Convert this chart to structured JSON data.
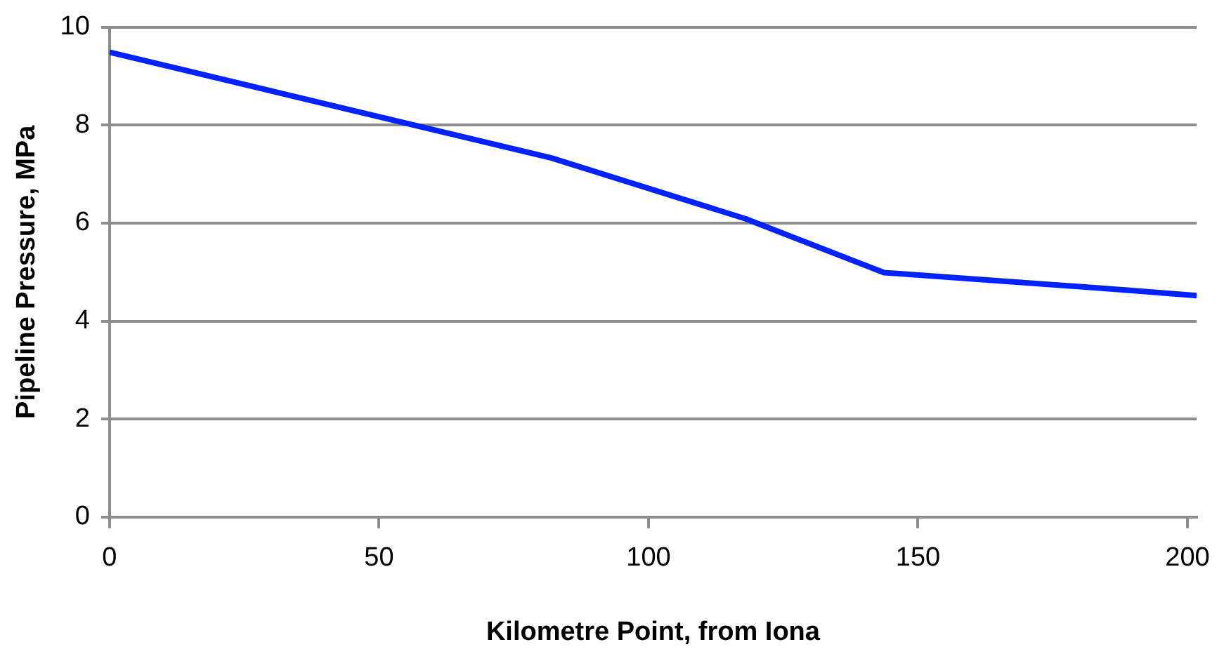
{
  "chart_data": {
    "type": "line",
    "xlabel": "Kilometre Point, from Iona",
    "ylabel": "Pipeline Pressure, MPa",
    "x": [
      0,
      82,
      118,
      143.7,
      188,
      201.7
    ],
    "series": [
      {
        "color": "#0022ff",
        "values": [
          9.49,
          7.33,
          6.09,
          4.99,
          4.64,
          4.52
        ]
      }
    ],
    "xlim": [
      0,
      201.7
    ],
    "xticks": [
      0,
      50,
      100,
      150,
      200
    ],
    "ylim": [
      0,
      10
    ],
    "yticks": [
      0,
      2,
      4,
      6,
      8,
      10
    ],
    "grid": "y",
    "marker": "none",
    "line_style": "solid",
    "legend": false
  }
}
